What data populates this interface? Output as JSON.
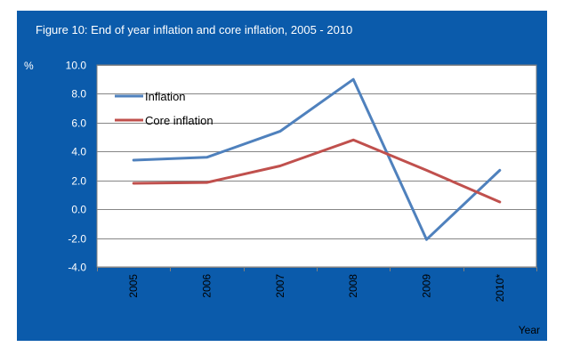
{
  "figure": {
    "title": "Figure 10: End of year inflation and core inflation, 2005 - 2010",
    "background": "#0b5bab"
  },
  "chart_data": {
    "type": "line",
    "title": "Figure 10: End of year inflation and core inflation, 2005 - 2010",
    "ylabel": "%",
    "xlabel": "Year",
    "x": [
      "2005",
      "2006",
      "2007",
      "2008",
      "2009",
      "2010*"
    ],
    "ylim": [
      -4.0,
      10.0
    ],
    "yticks": [
      "10.0",
      "8.0",
      "6.0",
      "4.0",
      "2.0",
      "0.0",
      "-2.0",
      "-4.0"
    ],
    "grid": true,
    "legend": "top-left",
    "series": [
      {
        "name": "Inflation",
        "color": "#4f81bd",
        "values": [
          3.4,
          3.6,
          5.4,
          9.0,
          -2.1,
          2.7
        ]
      },
      {
        "name": "Core inflation",
        "color": "#c0504d",
        "values": [
          1.8,
          1.85,
          3.0,
          4.8,
          2.7,
          0.5
        ]
      }
    ]
  }
}
